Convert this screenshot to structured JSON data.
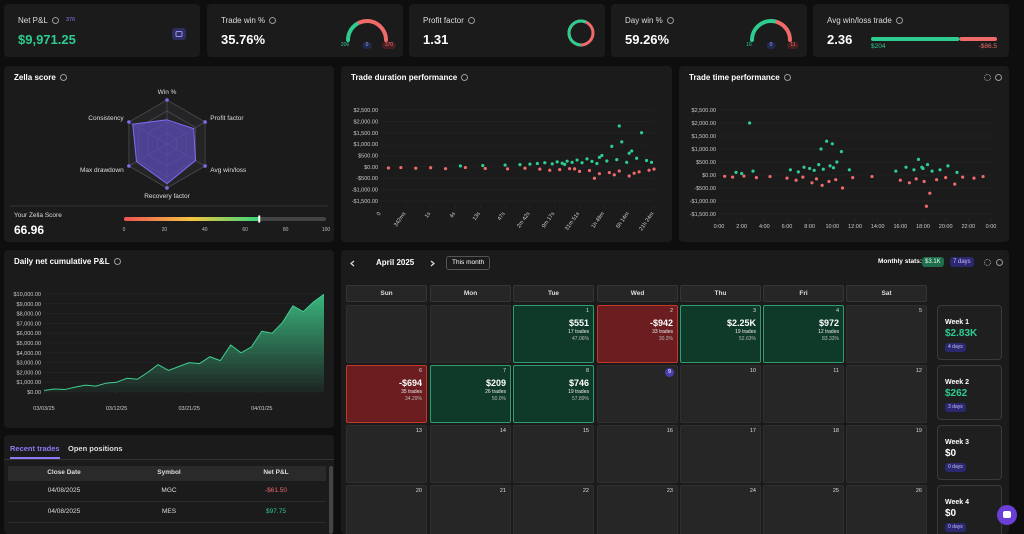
{
  "kpis": [
    {
      "label": "Net P&L",
      "badge": "376",
      "value": "$9,971.25",
      "color": "#2ecc8f",
      "widget": "icon"
    },
    {
      "label": "Trade win %",
      "value": "35.76%",
      "widget": "gauge",
      "gauge": {
        "win": 206,
        "even": 0,
        "loss": 370
      }
    },
    {
      "label": "Profit factor",
      "value": 1.31,
      "widget": "ring"
    },
    {
      "label": "Day win %",
      "value": "59.26%",
      "widget": "gauge",
      "gauge": {
        "win": 16,
        "even": 0,
        "loss": 11
      }
    },
    {
      "label": "Avg win/loss trade",
      "value": 2.36,
      "widget": "bar",
      "bar": {
        "win": {
          "value": 204,
          "label": "$204"
        },
        "loss": {
          "value": -86.5,
          "label": "-$86.5"
        }
      }
    }
  ],
  "zella": {
    "title": "Zella score",
    "rlim": [
      0,
      100
    ],
    "axes": [
      {
        "label": "Win %",
        "value": 55
      },
      {
        "label": "Profit factor",
        "value": 70
      },
      {
        "label": "Avg win/loss",
        "value": 75
      },
      {
        "label": "Recovery factor",
        "value": 90
      },
      {
        "label": "Max drawdown",
        "value": 80
      },
      {
        "label": "Consistency",
        "value": 90
      }
    ],
    "score_label": "Your Zella Score",
    "score": 66.96,
    "score_lim": [
      0,
      100
    ],
    "scale_ticks": [
      0,
      20,
      40,
      60,
      80,
      100
    ]
  },
  "duration": {
    "type": "scatter",
    "title": "Trade duration performance",
    "xlim": [
      0,
      11
    ],
    "xticks": [
      0,
      {
        "value": 1,
        "label": "342ms"
      },
      {
        "value": 2,
        "label": "1s"
      },
      {
        "value": 3,
        "label": "4s"
      },
      {
        "value": 4,
        "label": "13s"
      },
      {
        "value": 5,
        "label": "47s"
      },
      {
        "value": 6,
        "label": "2m 42s"
      },
      {
        "value": 7,
        "label": "9m 17s"
      },
      {
        "value": 8,
        "label": "31m 51s"
      },
      {
        "value": 9,
        "label": "1h 49m"
      },
      {
        "value": 10,
        "label": "6h 14m"
      },
      {
        "value": 11,
        "label": "21h 24m"
      }
    ],
    "ylim": [
      -1700,
      2700
    ],
    "yticks": [
      {
        "value": 2500,
        "label": "$2,500.00"
      },
      {
        "value": 2000,
        "label": "$2,000.00"
      },
      {
        "value": 1500,
        "label": "$1,500.00"
      },
      {
        "value": 1000,
        "label": "$1,000.00"
      },
      {
        "value": 500,
        "label": "$500.00"
      },
      {
        "value": 0,
        "label": "$0.00"
      },
      {
        "value": -500,
        "label": "-$500.00"
      },
      {
        "value": -1000,
        "label": "-$1,000.00"
      },
      {
        "value": -1500,
        "label": "-$1,500.00"
      }
    ],
    "series": [
      {
        "color": "#2ecc8f",
        "x": [
          3.2,
          4.1,
          5.0,
          5.6,
          6.0,
          6.3,
          6.6,
          6.9,
          7.1,
          7.3,
          7.5,
          7.7,
          7.9,
          8.1,
          8.3,
          8.5,
          8.7,
          8.9,
          9.1,
          9.3,
          9.5,
          9.7,
          9.9,
          10.1,
          10.3,
          10.5,
          10.7,
          10.9,
          9.6,
          10.0,
          8.8,
          7.4
        ],
        "y": [
          40,
          60,
          80,
          100,
          120,
          150,
          180,
          130,
          220,
          160,
          250,
          200,
          300,
          180,
          350,
          240,
          150,
          500,
          260,
          900,
          320,
          1100,
          200,
          700,
          380,
          1500,
          280,
          200,
          1800,
          600,
          420,
          110
        ]
      },
      {
        "color": "#f06a6a",
        "x": [
          0.3,
          0.8,
          1.4,
          2.0,
          2.6,
          3.4,
          4.2,
          5.1,
          5.8,
          6.4,
          6.8,
          7.2,
          7.6,
          8.0,
          8.4,
          8.8,
          9.2,
          9.6,
          10.0,
          10.4,
          10.8,
          11.0,
          8.6,
          9.4,
          7.8,
          10.2
        ],
        "y": [
          -50,
          -30,
          -60,
          -40,
          -80,
          -30,
          -70,
          -90,
          -60,
          -100,
          -150,
          -120,
          -80,
          -200,
          -160,
          -300,
          -250,
          -180,
          -400,
          -220,
          -150,
          -100,
          -500,
          -350,
          -90,
          -280
        ]
      }
    ]
  },
  "time": {
    "type": "scatter",
    "title": "Trade time performance",
    "xlim": [
      0,
      24
    ],
    "xticks": [
      {
        "value": 0,
        "label": "0:00"
      },
      {
        "value": 2,
        "label": "2:00"
      },
      {
        "value": 4,
        "label": "4:00"
      },
      {
        "value": 6,
        "label": "6:00"
      },
      {
        "value": 8,
        "label": "8:00"
      },
      {
        "value": 10,
        "label": "10:00"
      },
      {
        "value": 12,
        "label": "12:00"
      },
      {
        "value": 14,
        "label": "14:00"
      },
      {
        "value": 16,
        "label": "16:00"
      },
      {
        "value": 18,
        "label": "18:00"
      },
      {
        "value": 20,
        "label": "20:00"
      },
      {
        "value": 22,
        "label": "22:00"
      },
      {
        "value": 24,
        "label": "0:00"
      }
    ],
    "ylim": [
      -1700,
      2700
    ],
    "yticks": [
      {
        "value": 2500,
        "label": "$2,500.00"
      },
      {
        "value": 2000,
        "label": "$2,000.00"
      },
      {
        "value": 1500,
        "label": "$1,500.00"
      },
      {
        "value": 1000,
        "label": "$1,000.00"
      },
      {
        "value": 500,
        "label": "$500.00"
      },
      {
        "value": 0,
        "label": "$0.00"
      },
      {
        "value": -500,
        "label": "-$500.00"
      },
      {
        "value": -1000,
        "label": "-$1,000.00"
      },
      {
        "value": -1500,
        "label": "-$1,500.00"
      }
    ],
    "series": [
      {
        "color": "#2ecc8f",
        "x": [
          1.5,
          2.0,
          2.7,
          3.0,
          6.3,
          7.0,
          7.5,
          8.0,
          8.4,
          8.8,
          9.2,
          9.5,
          9.8,
          10.1,
          10.4,
          10.8,
          11.5,
          15.6,
          16.5,
          17.2,
          17.6,
          18.0,
          18.4,
          18.8,
          19.5,
          20.2,
          21.0,
          9.0,
          10.0,
          17.9
        ],
        "y": [
          100,
          60,
          2000,
          150,
          200,
          120,
          300,
          250,
          180,
          400,
          220,
          1300,
          350,
          280,
          500,
          900,
          200,
          150,
          300,
          200,
          600,
          250,
          400,
          150,
          200,
          350,
          100,
          1000,
          1200,
          300
        ]
      },
      {
        "color": "#f06a6a",
        "x": [
          0.5,
          1.2,
          2.2,
          3.3,
          4.5,
          6.0,
          6.8,
          7.4,
          8.2,
          8.6,
          9.1,
          9.7,
          10.3,
          10.9,
          11.8,
          13.5,
          16.0,
          16.8,
          17.4,
          18.1,
          18.6,
          19.2,
          20.0,
          20.8,
          21.5,
          22.5,
          23.3,
          18.3
        ],
        "y": [
          -50,
          -80,
          -40,
          -100,
          -60,
          -120,
          -200,
          -80,
          -300,
          -150,
          -400,
          -250,
          -180,
          -500,
          -100,
          -60,
          -200,
          -300,
          -150,
          -250,
          -700,
          -180,
          -100,
          -350,
          -80,
          -120,
          -60,
          -1200
        ]
      }
    ]
  },
  "cumulative": {
    "type": "area",
    "title": "Daily net cumulative P&L",
    "color": "#3fcf8e",
    "xlim": [
      0,
      27
    ],
    "xticks": [
      {
        "value": 0,
        "label": "03/03/25"
      },
      {
        "value": 7,
        "label": "03/12/25"
      },
      {
        "value": 14,
        "label": "03/21/25"
      },
      {
        "value": 21,
        "label": "04/01/25"
      }
    ],
    "ylim": [
      0,
      10000
    ],
    "yticks": [
      {
        "value": 10000,
        "label": "$10,000.00"
      },
      {
        "value": 9000,
        "label": "$9,000.00"
      },
      {
        "value": 8000,
        "label": "$8,000.00"
      },
      {
        "value": 7000,
        "label": "$7,000.00"
      },
      {
        "value": 6000,
        "label": "$6,000.00"
      },
      {
        "value": 5000,
        "label": "$5,000.00"
      },
      {
        "value": 4000,
        "label": "$4,000.00"
      },
      {
        "value": 3000,
        "label": "$3,000.00"
      },
      {
        "value": 2000,
        "label": "$2,000.00"
      },
      {
        "value": 1000,
        "label": "$1,000.00"
      },
      {
        "value": 0,
        "label": "$0.00"
      }
    ],
    "values": [
      150,
      300,
      250,
      500,
      700,
      600,
      900,
      1000,
      1400,
      1300,
      2000,
      2800,
      2200,
      2600,
      3000,
      2900,
      3600,
      3200,
      4800,
      4000,
      4600,
      6200,
      6000,
      7100,
      8800,
      8200,
      9200,
      9971.25
    ]
  },
  "trades": {
    "tabs": [
      "Recent trades",
      "Open positions"
    ],
    "columns": [
      "Close Date",
      "Symbol",
      "Net P&L"
    ],
    "rows": [
      [
        "04/08/2025",
        "MGC",
        "-$61.50"
      ],
      [
        "04/08/2025",
        "MES",
        "$97.75"
      ]
    ]
  },
  "calendar": {
    "month": "April 2025",
    "button": "This month",
    "stats_label": "Monthly stats:",
    "stats_pnl": "$3.1K",
    "stats_days": "7 days",
    "weekdays": [
      "Sun",
      "Mon",
      "Tue",
      "Wed",
      "Thu",
      "Fri",
      "Sat"
    ],
    "weeks": [
      [
        null,
        null,
        {
          "day": 1,
          "pnl": "$551",
          "trades": "17 trades",
          "win_rate": "47.06%"
        },
        {
          "day": 2,
          "pnl": "-$942",
          "trades": "33 trades",
          "win_rate": "30.3%"
        },
        {
          "day": 3,
          "pnl": "$2.25K",
          "trades": "19 trades",
          "win_rate": "52.63%"
        },
        {
          "day": 4,
          "pnl": "$972",
          "trades": "12 trades",
          "win_rate": "83.33%"
        },
        {
          "day": 5
        }
      ],
      [
        {
          "day": 6,
          "pnl": "-$694",
          "trades": "35 trades",
          "win_rate": "34.29%"
        },
        {
          "day": 7,
          "pnl": "$209",
          "trades": "26 trades",
          "win_rate": "50.0%"
        },
        {
          "day": 8,
          "pnl": "$746",
          "trades": "19 trades",
          "win_rate": "57.89%"
        },
        {
          "day": 9,
          "today": true
        },
        {
          "day": 10
        },
        {
          "day": 11
        },
        {
          "day": 12
        }
      ],
      [
        {
          "day": 13
        },
        {
          "day": 14
        },
        {
          "day": 15
        },
        {
          "day": 16
        },
        {
          "day": 17
        },
        {
          "day": 18
        },
        {
          "day": 19
        }
      ],
      [
        {
          "day": 20
        },
        {
          "day": 21
        },
        {
          "day": 22
        },
        {
          "day": 23
        },
        {
          "day": 24
        },
        {
          "day": 25
        },
        {
          "day": 26
        }
      ]
    ],
    "week_summaries": [
      {
        "label": "Week 1",
        "pnl": "$2.83K",
        "days": "4 days",
        "color": "#2ecc8f"
      },
      {
        "label": "Week 2",
        "pnl": "$262",
        "days": "3 days",
        "color": "#2ecc8f"
      },
      {
        "label": "Week 3",
        "pnl": "$0",
        "days": "0 days",
        "color": "#ffffff"
      },
      {
        "label": "Week 4",
        "pnl": "$0",
        "days": "0 days",
        "color": "#ffffff"
      }
    ]
  }
}
